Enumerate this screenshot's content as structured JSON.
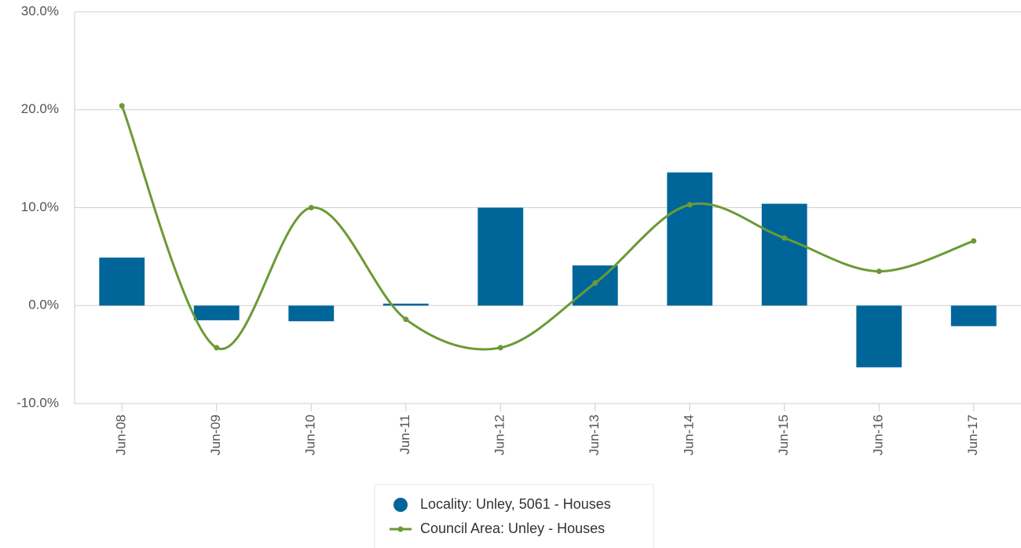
{
  "chart_data": {
    "type": "bar-line",
    "categories": [
      "Jun-08",
      "Jun-09",
      "Jun-10",
      "Jun-11",
      "Jun-12",
      "Jun-13",
      "Jun-14",
      "Jun-15",
      "Jun-16",
      "Jun-17"
    ],
    "series": [
      {
        "name": "Locality: Unley, 5061 - Houses",
        "type": "bar",
        "color": "#006699",
        "values": [
          4.9,
          -1.5,
          -1.6,
          0.2,
          10.0,
          4.1,
          13.6,
          10.4,
          -6.3,
          -2.1
        ]
      },
      {
        "name": "Council Area: Unley - Houses",
        "type": "line",
        "color": "#6b9a35",
        "values": [
          20.4,
          -4.3,
          10.0,
          -1.4,
          -4.3,
          2.3,
          10.3,
          6.9,
          3.5,
          6.6
        ]
      }
    ],
    "ylim": [
      -10,
      30
    ],
    "yticks": [
      {
        "value": -10,
        "label": "-10.0%"
      },
      {
        "value": 0,
        "label": "0.0%"
      },
      {
        "value": 10,
        "label": "10.0%"
      },
      {
        "value": 20,
        "label": "20.0%"
      },
      {
        "value": 30,
        "label": "30.0%"
      }
    ],
    "grid": true
  }
}
